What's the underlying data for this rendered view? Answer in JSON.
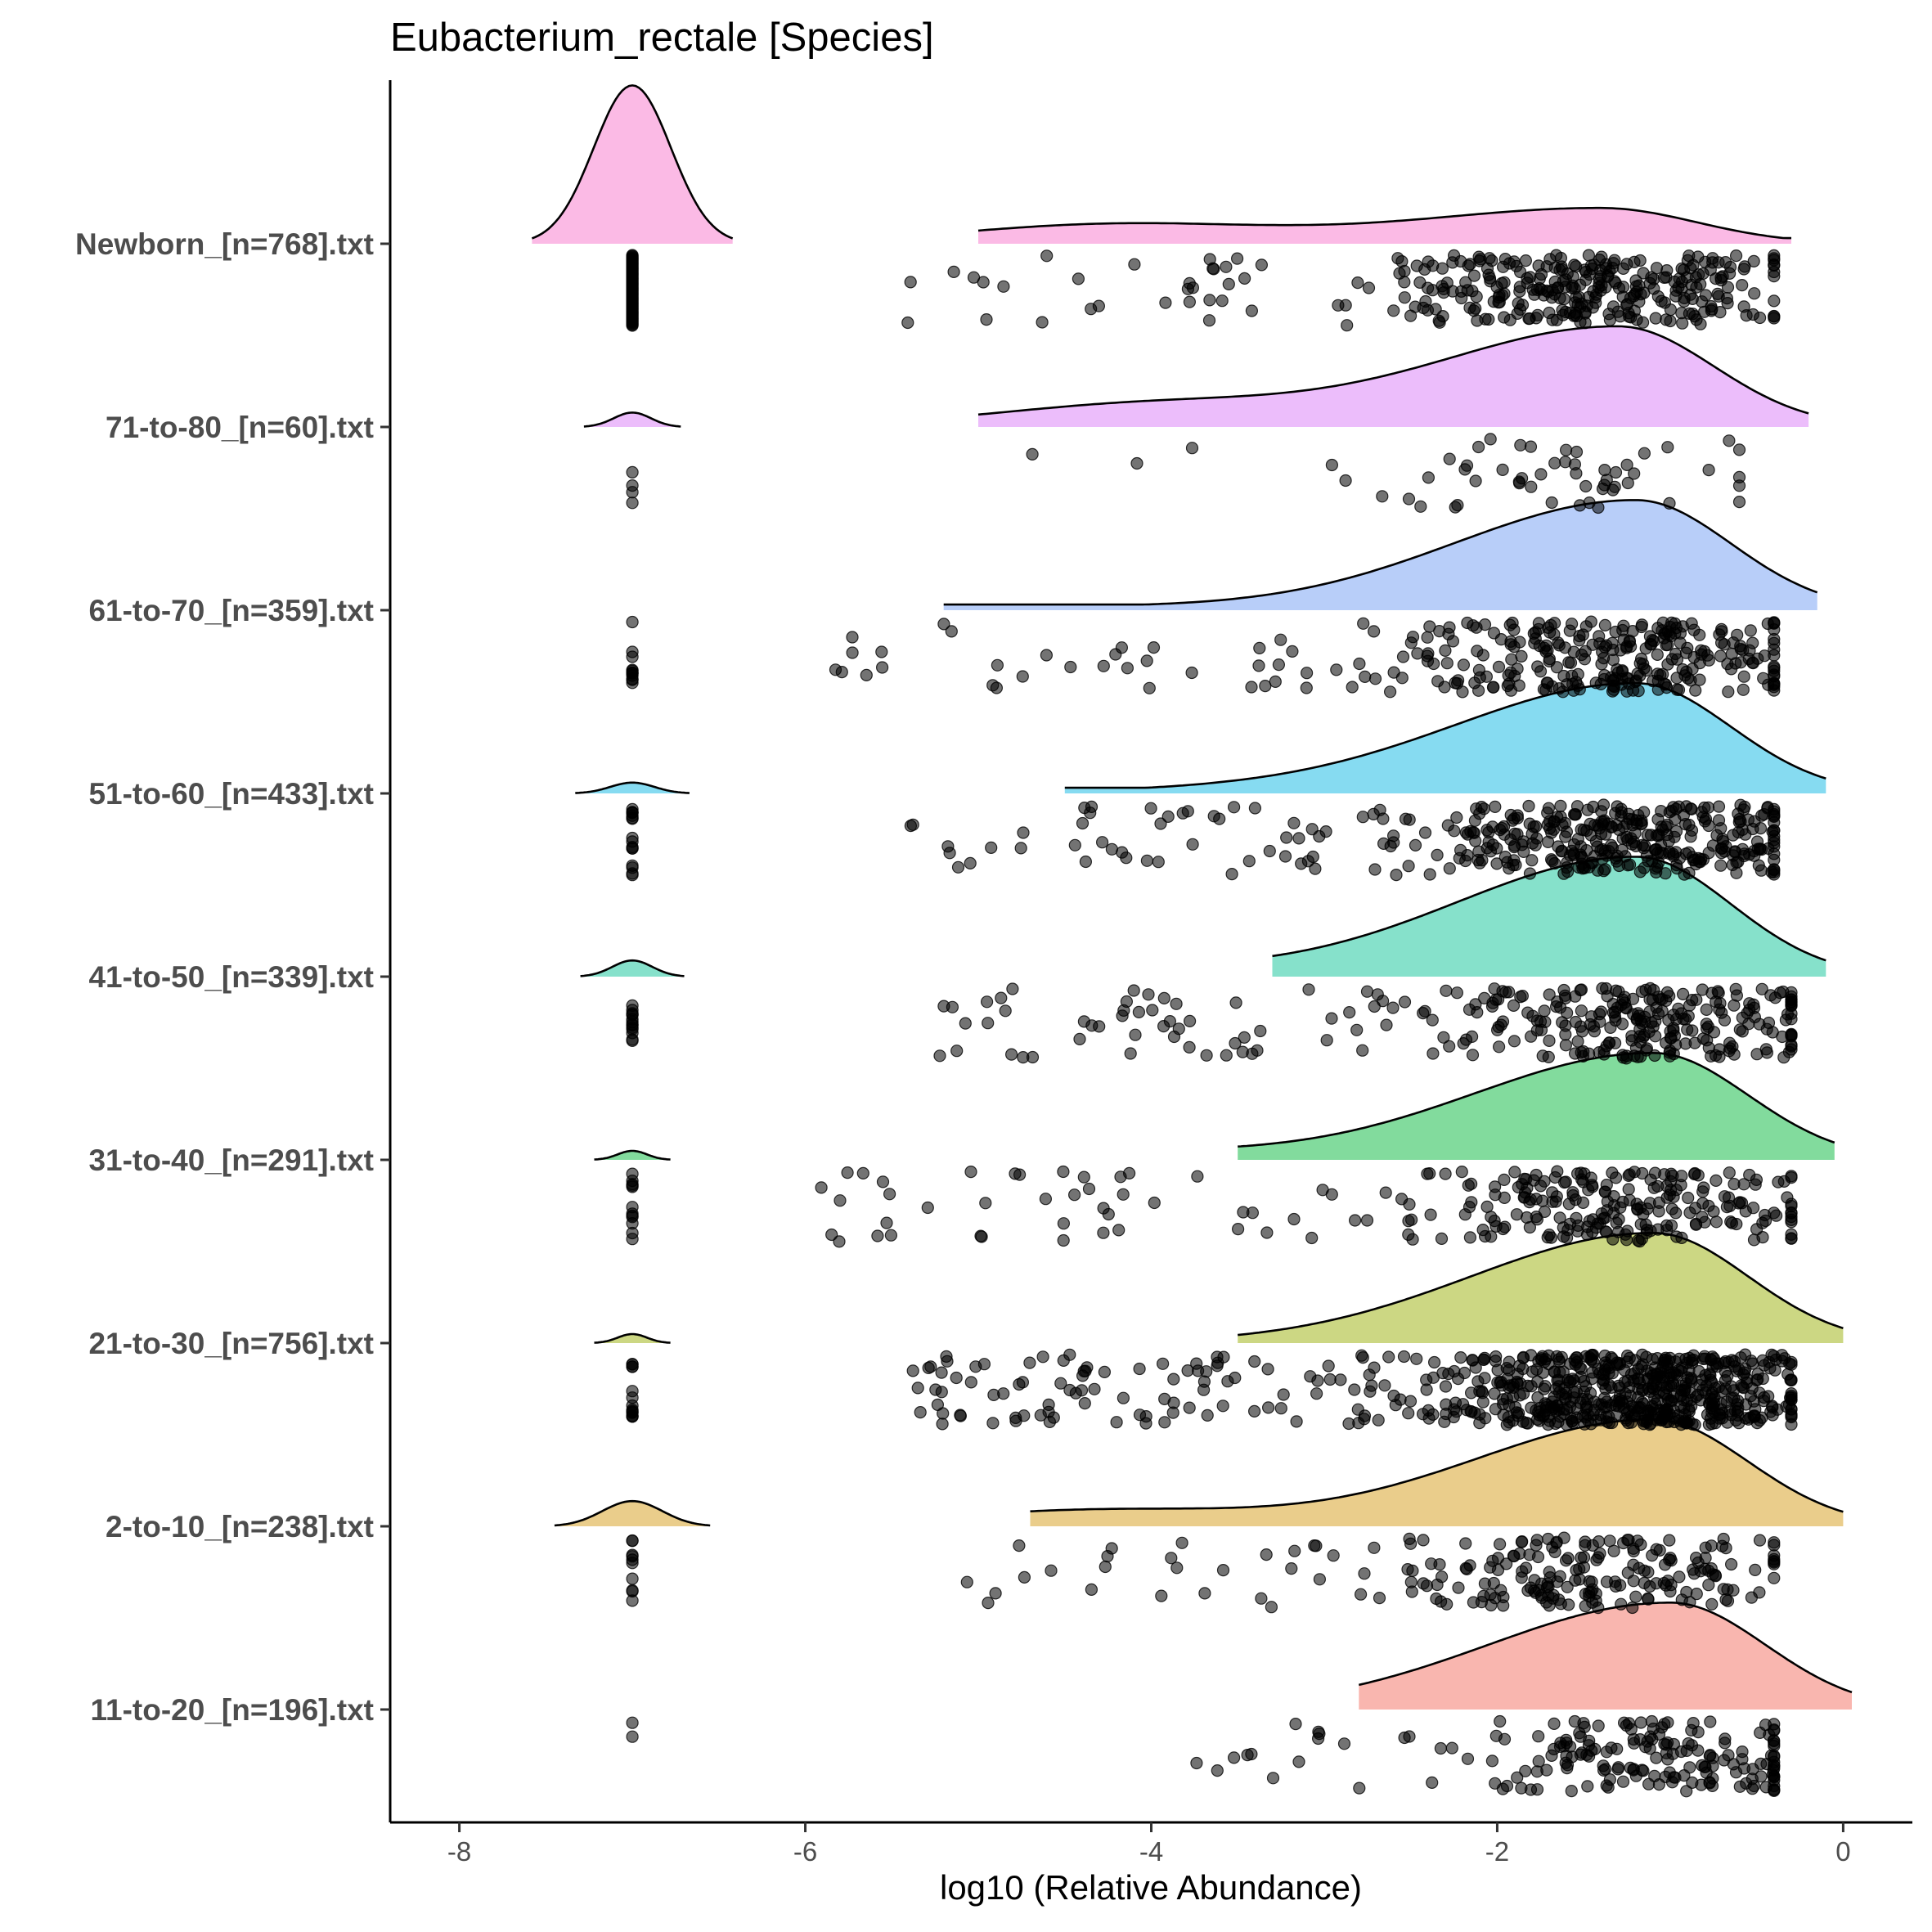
{
  "chart_data": {
    "type": "raincloud",
    "title": "Eubacterium_rectale [Species]",
    "xlabel": "log10 (Relative Abundance)",
    "ylabel": "",
    "xlim": [
      -8.4,
      0.4
    ],
    "xticks": [
      -8,
      -6,
      -4,
      -2,
      0
    ],
    "xtick_labels": [
      "-8",
      "-6",
      "-4",
      "-2",
      "0"
    ],
    "legend": "none",
    "groups": [
      {
        "label": "Newborn_[n=768].txt",
        "color": "#f781d0",
        "zero_value": -7,
        "zero_pile": {
          "width": 0.58,
          "height": 0.88
        },
        "tail_range": [
          -5.0,
          -0.3
        ],
        "tail_mode": -1.4,
        "tail_height": 0.22,
        "tail_secondary": [
          -4.2,
          0.12
        ],
        "points_range": [
          -5.6,
          -0.4
        ],
        "points_center": -1.5,
        "points_count": 340,
        "zero_points": 80
      },
      {
        "label": "71-to-80_[n=60].txt",
        "color": "#dc86f8",
        "zero_value": -7,
        "zero_pile": {
          "width": 0.28,
          "height": 0.08
        },
        "tail_range": [
          -5.0,
          -0.2
        ],
        "tail_mode": -1.3,
        "tail_height": 0.62,
        "tail_secondary": [
          -4.0,
          0.14
        ],
        "points_range": [
          -4.9,
          -0.6
        ],
        "points_center": -1.6,
        "points_count": 55,
        "zero_points": 4
      },
      {
        "label": "61-to-70_[n=359].txt",
        "color": "#7ea6f4",
        "zero_value": -7,
        "zero_pile": {
          "width": 0.0,
          "height": 0.0
        },
        "tail_range": [
          -5.2,
          -0.15
        ],
        "tail_mode": -1.2,
        "tail_height": 0.68,
        "tail_secondary": [
          -4.5,
          0.02
        ],
        "points_range": [
          -5.9,
          -0.4
        ],
        "points_center": -1.3,
        "points_count": 320,
        "zero_points": 12
      },
      {
        "label": "51-to-60_[n=433].txt",
        "color": "#23bde6",
        "zero_value": -7,
        "zero_pile": {
          "width": 0.33,
          "height": 0.06
        },
        "tail_range": [
          -4.5,
          -0.1
        ],
        "tail_mode": -1.2,
        "tail_height": 0.68,
        "tail_secondary": [
          -3.5,
          0.02
        ],
        "points_range": [
          -5.4,
          -0.4
        ],
        "points_center": -1.2,
        "points_count": 400,
        "zero_points": 16
      },
      {
        "label": "41-to-50_[n=339].txt",
        "color": "#22c9a1",
        "zero_value": -7,
        "zero_pile": {
          "width": 0.3,
          "height": 0.09
        },
        "tail_range": [
          -3.3,
          -0.1
        ],
        "tail_mode": -1.2,
        "tail_height": 0.74,
        "tail_secondary": [
          -4.3,
          0.05
        ],
        "points_range": [
          -5.4,
          -0.3
        ],
        "points_center": -1.2,
        "points_count": 310,
        "zero_points": 14
      },
      {
        "label": "31-to-40_[n=291].txt",
        "color": "#1cbe4c",
        "zero_value": -7,
        "zero_pile": {
          "width": 0.22,
          "height": 0.05
        },
        "tail_range": [
          -3.5,
          -0.05
        ],
        "tail_mode": -1.1,
        "tail_height": 0.66,
        "tail_secondary": [
          -4.3,
          0.05
        ],
        "points_range": [
          -6.0,
          -0.3
        ],
        "points_center": -1.2,
        "points_count": 270,
        "zero_points": 12
      },
      {
        "label": "21-to-30_[n=756].txt",
        "color": "#a3b61d",
        "zero_value": -7,
        "zero_pile": {
          "width": 0.22,
          "height": 0.05
        },
        "tail_range": [
          -3.5,
          0.0
        ],
        "tail_mode": -1.1,
        "tail_height": 0.68,
        "tail_secondary": [
          -3.5,
          0.0
        ],
        "points_range": [
          -5.4,
          -0.3
        ],
        "points_center": -1.2,
        "points_count": 700,
        "zero_points": 14
      },
      {
        "label": "2-to-10_[n=238].txt",
        "color": "#d8a42b",
        "zero_value": -7,
        "zero_pile": {
          "width": 0.45,
          "height": 0.14
        },
        "tail_range": [
          -4.7,
          0.0
        ],
        "tail_mode": -1.1,
        "tail_height": 0.66,
        "tail_secondary": [
          -4.3,
          0.1
        ],
        "points_range": [
          -5.1,
          -0.4
        ],
        "points_center": -1.5,
        "points_count": 220,
        "zero_points": 10
      },
      {
        "label": "11-to-20_[n=196].txt",
        "color": "#f47a6e",
        "zero_value": -7,
        "zero_pile": {
          "width": 0.0,
          "height": 0.0
        },
        "tail_range": [
          -2.8,
          0.05
        ],
        "tail_mode": -1.0,
        "tail_height": 0.66,
        "tail_secondary": [
          -2.8,
          0.0
        ],
        "points_range": [
          -3.8,
          -0.4
        ],
        "points_center": -1.0,
        "points_count": 190,
        "zero_points": 2
      }
    ]
  }
}
